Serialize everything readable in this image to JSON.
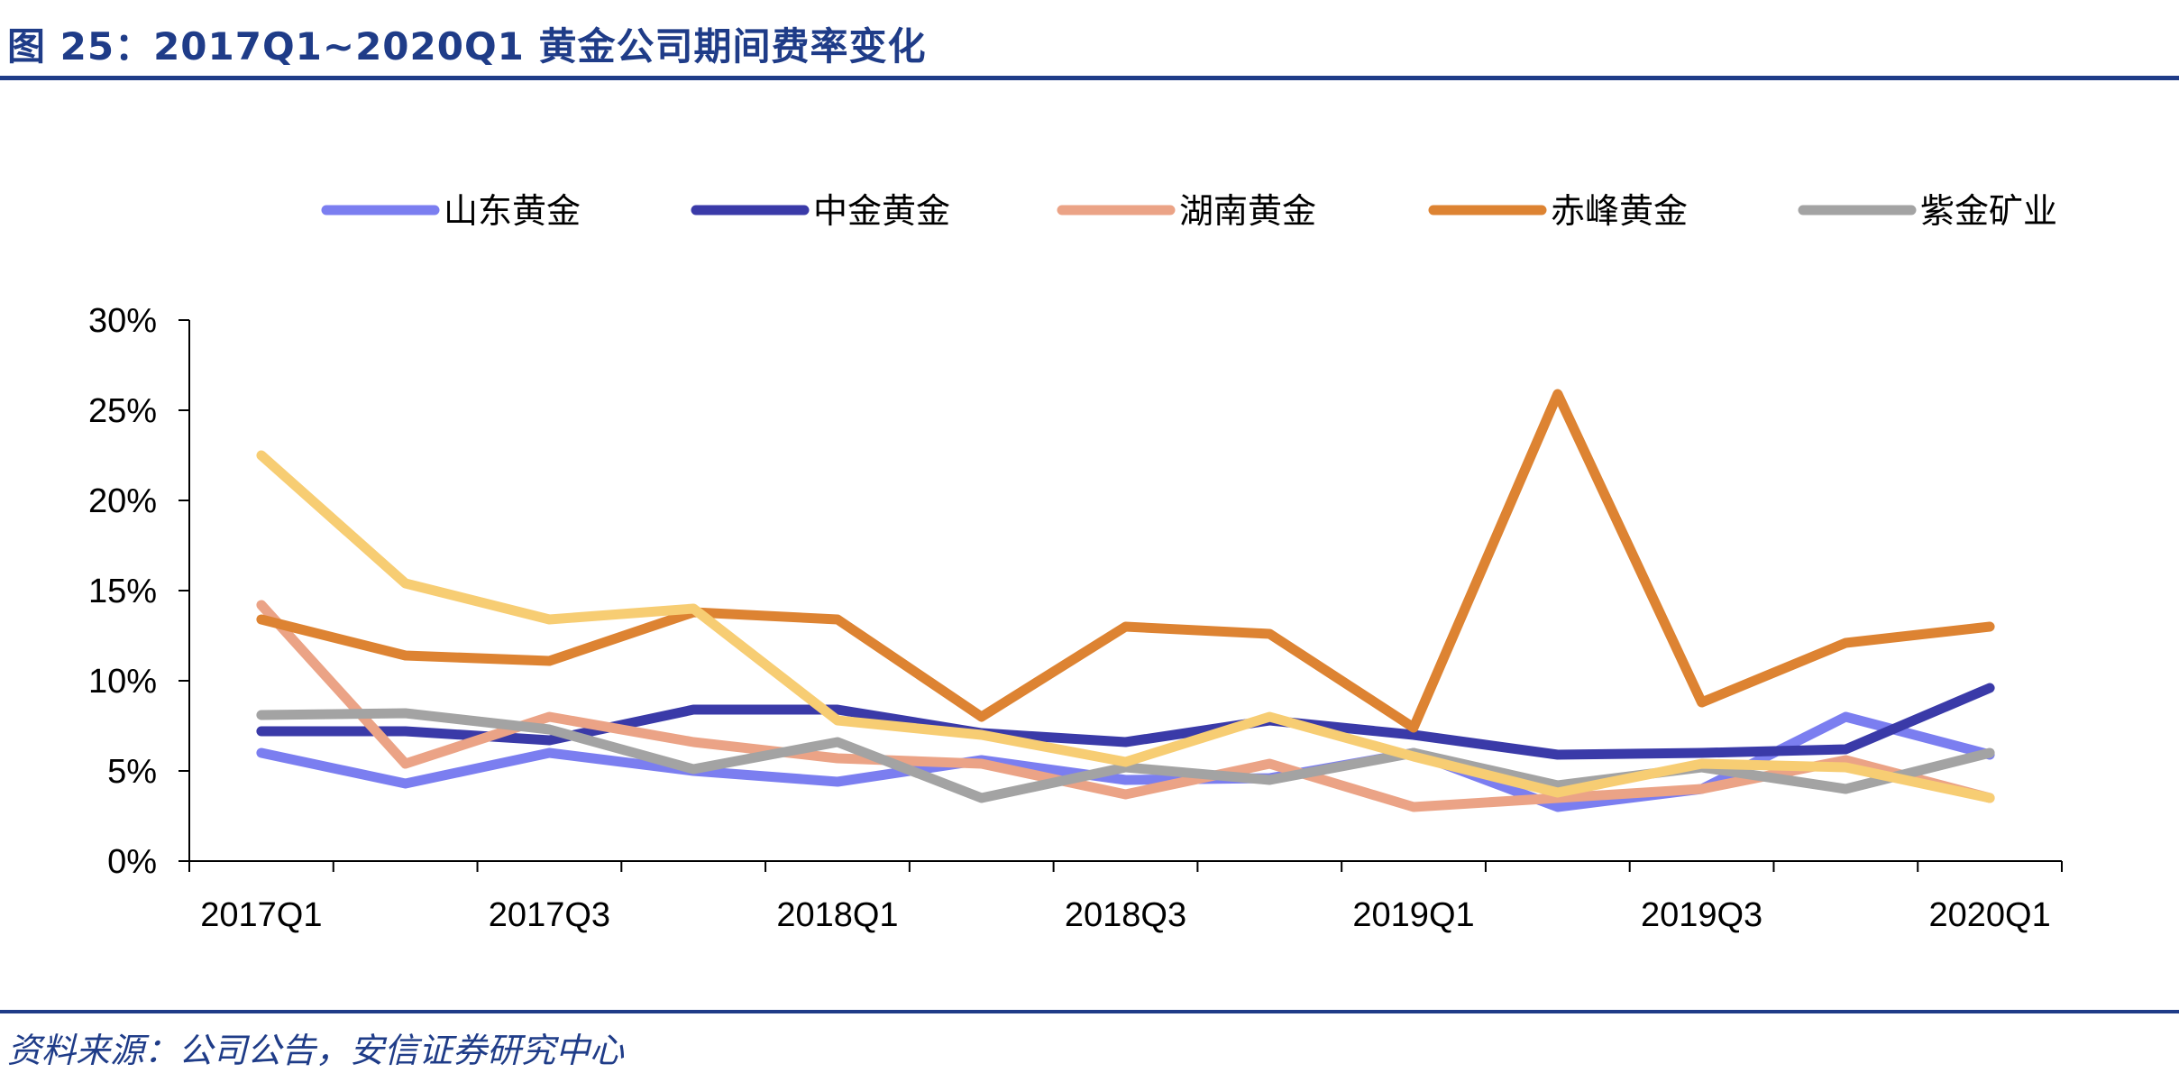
{
  "figure": {
    "title": "图 25：2017Q1~2020Q1 黄金公司期间费率变化",
    "source": "资料来源：公司公告，安信证券研究中心"
  },
  "chart_data": {
    "type": "line",
    "categories": [
      "2017Q1",
      "2017Q2",
      "2017Q3",
      "2017Q4",
      "2018Q1",
      "2018Q2",
      "2018Q3",
      "2018Q4",
      "2019Q1",
      "2019Q2",
      "2019Q3",
      "2019Q4",
      "2020Q1"
    ],
    "x_tick_labels": [
      "2017Q1",
      "2017Q3",
      "2018Q1",
      "2018Q3",
      "2019Q1",
      "2019Q3",
      "2020Q1"
    ],
    "y_tick_labels": [
      "0%",
      "5%",
      "10%",
      "15%",
      "20%",
      "25%",
      "30%"
    ],
    "ylim": [
      0,
      30
    ],
    "ylabel": "",
    "xlabel": "",
    "legend_position": "top",
    "grid": false,
    "series": [
      {
        "name": "山东黄金",
        "color": "#7b7ef0",
        "values": [
          6.0,
          4.3,
          6.0,
          5.0,
          4.4,
          5.6,
          4.5,
          4.6,
          6.0,
          3.0,
          4.0,
          8.0,
          5.9
        ]
      },
      {
        "name": "中金黄金",
        "color": "#3a3aa8",
        "values": [
          7.2,
          7.2,
          6.7,
          8.4,
          8.4,
          7.1,
          6.6,
          7.8,
          7.0,
          5.9,
          6.0,
          6.2,
          9.6
        ]
      },
      {
        "name": "湖南黄金",
        "color": "#eba386",
        "values": [
          14.2,
          5.4,
          8.0,
          6.6,
          5.7,
          5.4,
          3.7,
          5.4,
          3.0,
          3.5,
          4.0,
          5.6,
          3.5
        ]
      },
      {
        "name": "赤峰黄金",
        "color": "#dd8332",
        "values": [
          13.4,
          11.4,
          11.1,
          13.8,
          13.4,
          8.0,
          13.0,
          12.6,
          7.4,
          25.9,
          8.8,
          12.1,
          13.0
        ]
      },
      {
        "name": "紫金矿业",
        "color": "#a3a3a3",
        "values": [
          8.1,
          8.2,
          7.3,
          5.1,
          6.6,
          3.5,
          5.2,
          4.5,
          6.0,
          4.2,
          5.2,
          4.0,
          6.0
        ]
      },
      {
        "values": [
          22.5,
          15.4,
          13.4,
          14.0,
          7.8,
          7.0,
          5.5,
          8.0,
          5.8,
          3.8,
          5.4,
          5.2,
          3.5
        ],
        "color": "#f7cd73"
      }
    ]
  }
}
